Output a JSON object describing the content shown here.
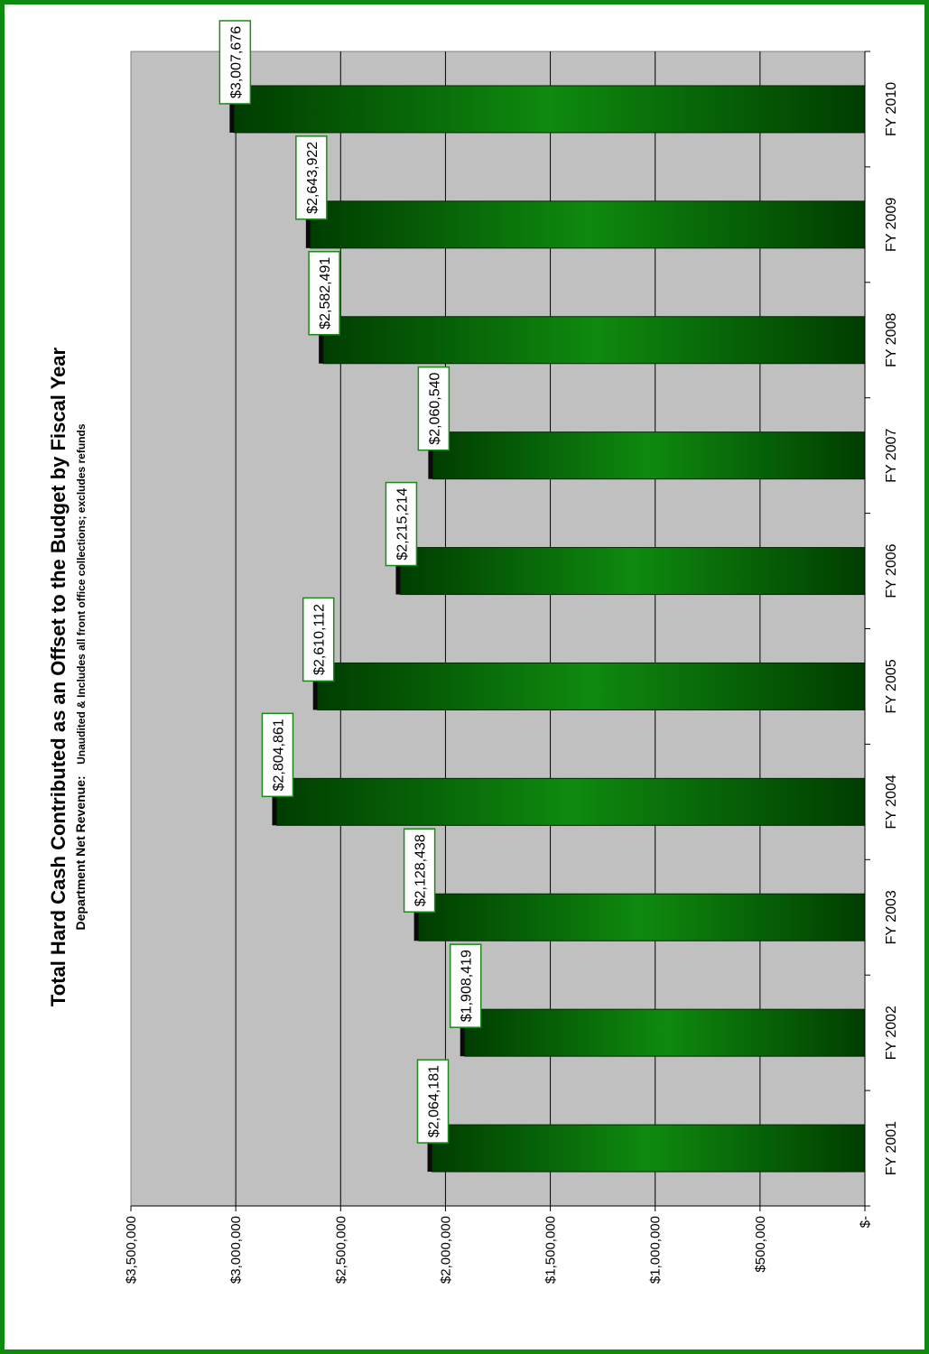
{
  "colors": {
    "frame": "#0e8a0e",
    "plot_area": "#c0c0c0",
    "bar_dark": "#003d00",
    "bar_light": "#0e8a0e",
    "label_border": "#1a8a1a"
  },
  "chart_data": {
    "type": "bar",
    "orientation": "rotated 90 degrees clockwise",
    "title": "Total Hard Cash Contributed as an Offset to the Budget by Fiscal Year",
    "subtitle_bold": "Department  Net Revenue:",
    "subtitle_rest": "Unaudited & Includes all front office collections; excludes refunds",
    "categories": [
      "FY 2001",
      "FY 2002",
      "FY 2003",
      "FY 2004",
      "FY 2005",
      "FY 2006",
      "FY 2007",
      "FY 2008",
      "FY 2009",
      "FY 2010"
    ],
    "values": [
      2064181,
      1908419,
      2128438,
      2804861,
      2610112,
      2215214,
      2060540,
      2582491,
      2643922,
      3007676
    ],
    "data_labels": [
      "$2,064,181",
      "$1,908,419",
      "$2,128,438",
      "$2,804,861",
      "$2,610,112",
      "$2,215,214",
      "$2,060,540",
      "$2,582,491",
      "$2,643,922",
      "$3,007,676"
    ],
    "ylim": [
      0,
      3500000
    ],
    "yticks": [
      0,
      500000,
      1000000,
      1500000,
      2000000,
      2500000,
      3000000,
      3500000
    ],
    "ytick_labels": [
      "$-",
      "$500,000",
      "$1,000,000",
      "$1,500,000",
      "$2,000,000",
      "$2,500,000",
      "$3,000,000",
      "$3,500,000"
    ],
    "grid": true,
    "legend": "none"
  }
}
